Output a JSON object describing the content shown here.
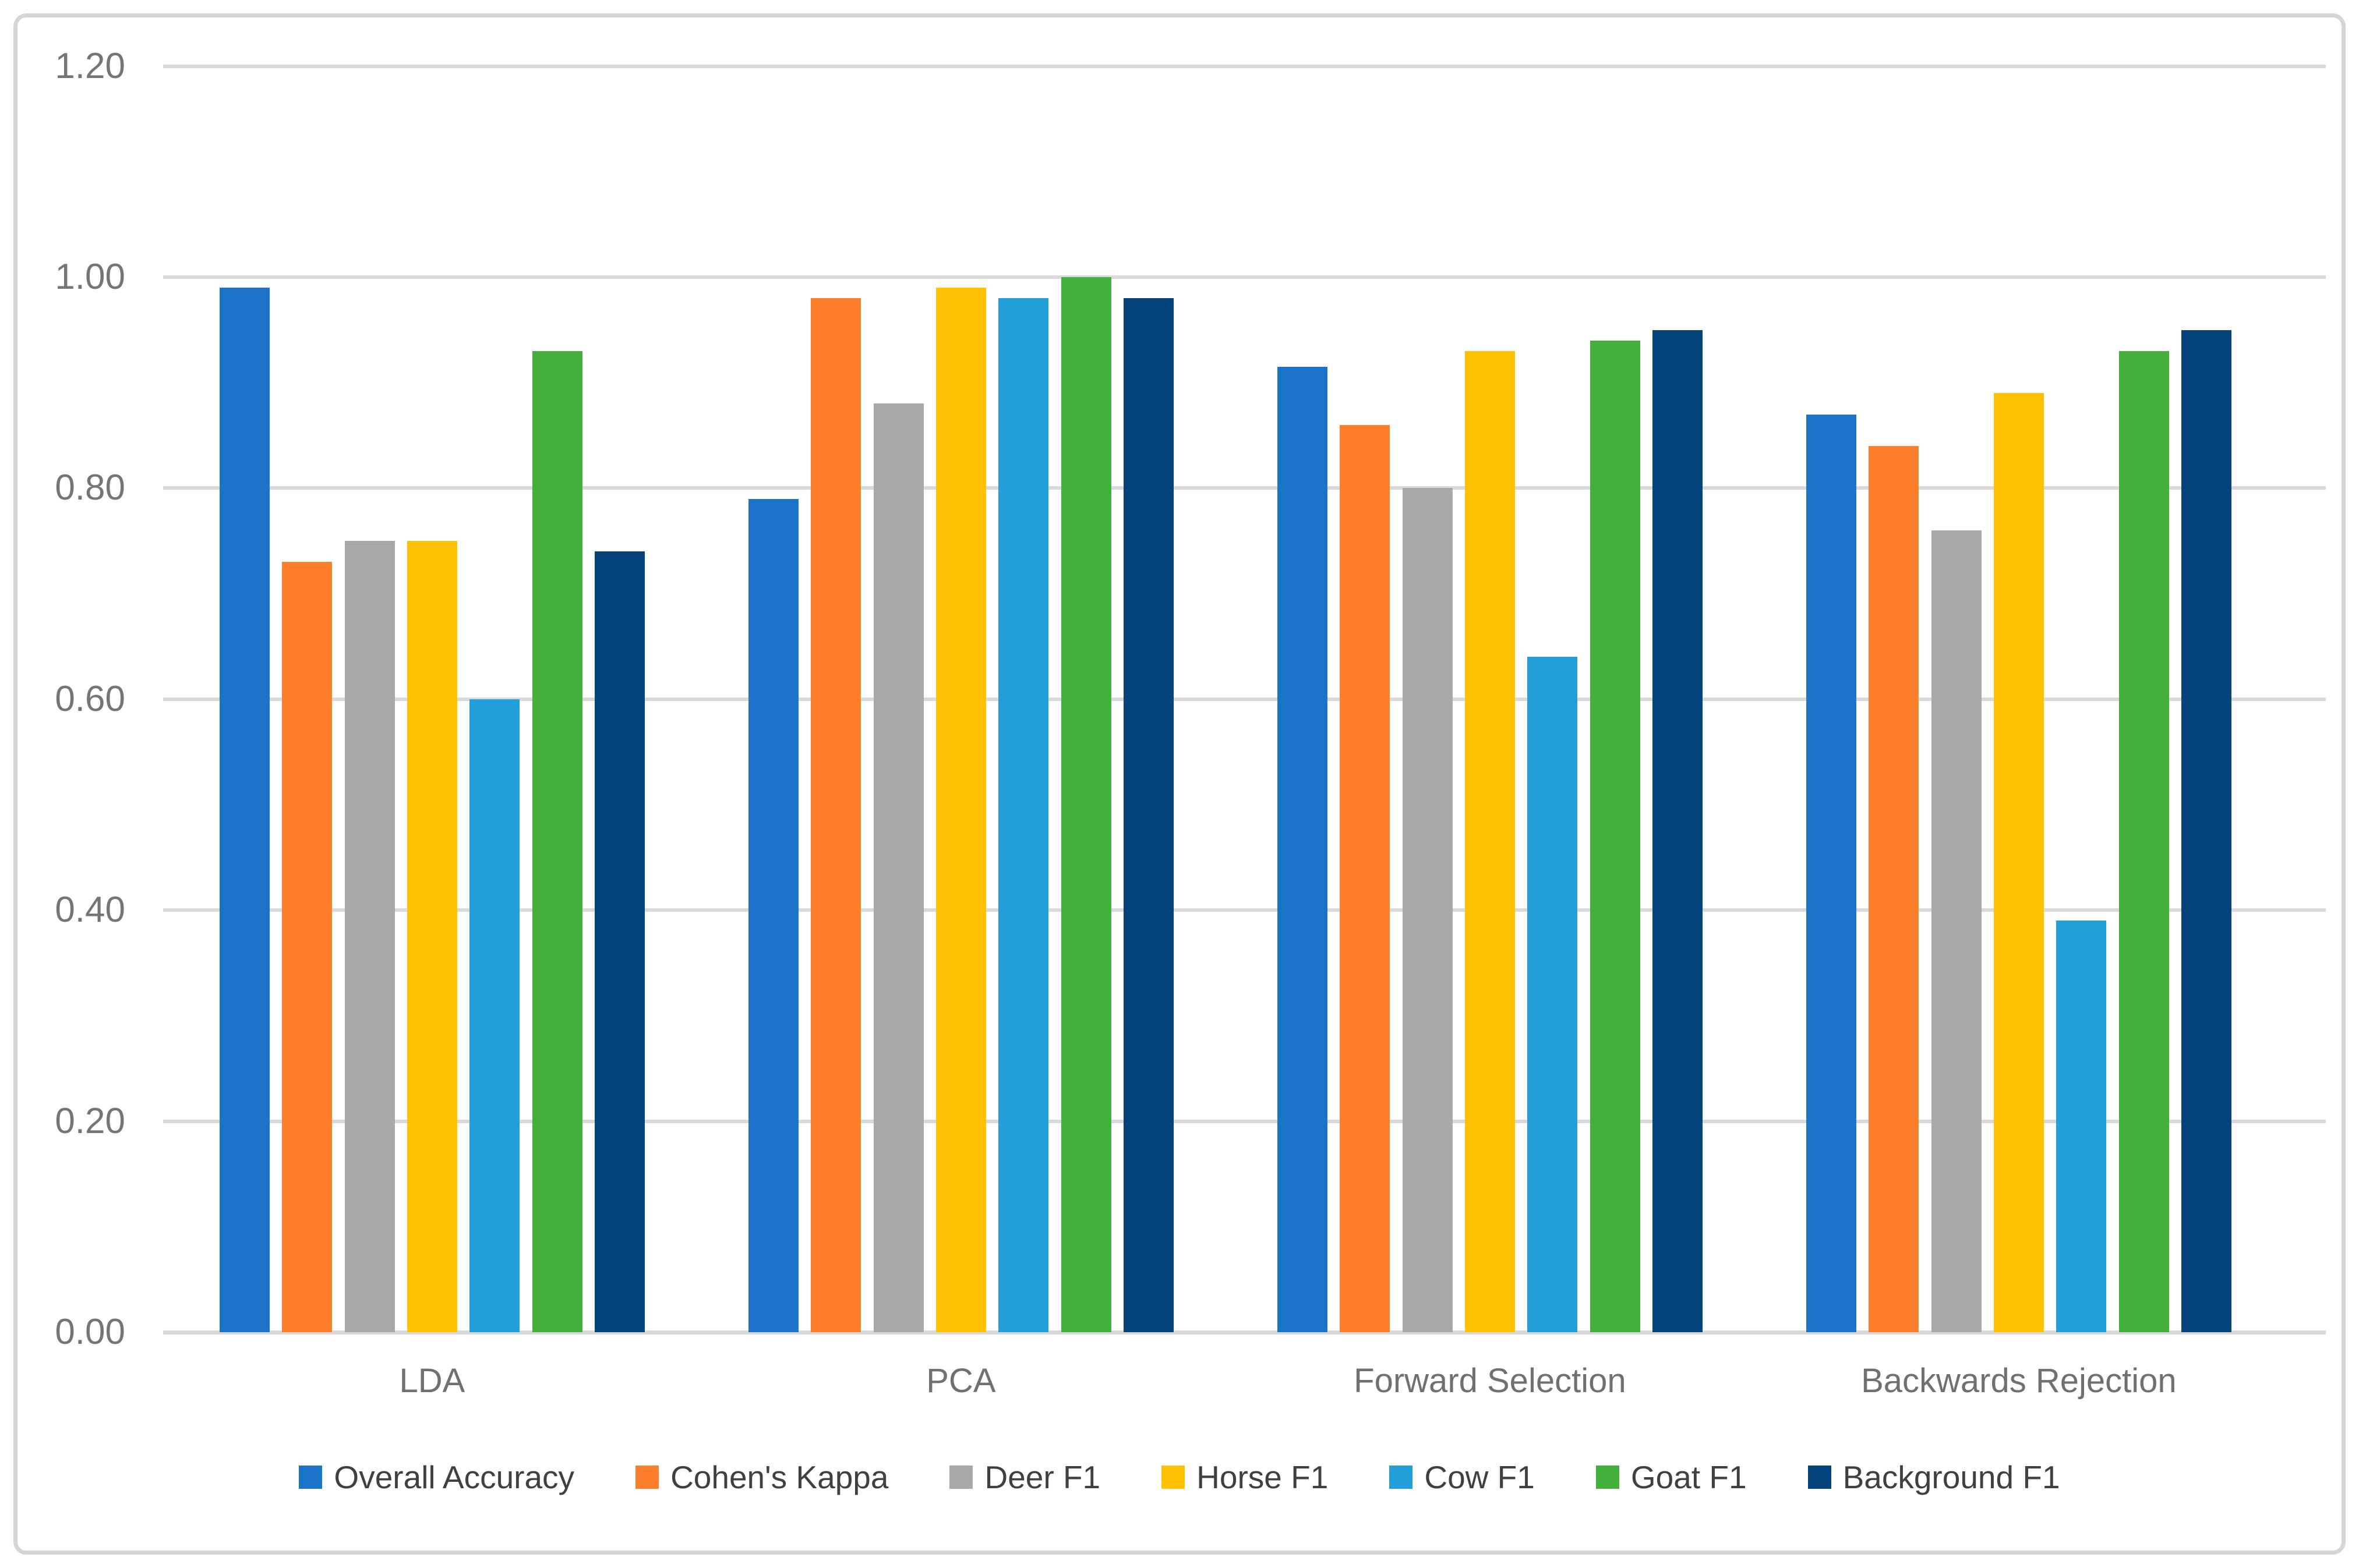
{
  "chart_data": {
    "type": "bar",
    "title": "",
    "xlabel": "",
    "ylabel": "",
    "grid": true,
    "legend_position": "bottom",
    "y_axis": {
      "min": 0.0,
      "max": 1.2,
      "step": 0.2,
      "ticks": [
        {
          "label": "1.20",
          "value": 1.2
        },
        {
          "label": "1.00",
          "value": 1.0
        },
        {
          "label": "0.80",
          "value": 0.8
        },
        {
          "label": "0.60",
          "value": 0.6
        },
        {
          "label": "0.40",
          "value": 0.4
        },
        {
          "label": "0.20",
          "value": 0.2
        },
        {
          "label": "0.00",
          "value": 0.0
        }
      ]
    },
    "categories": [
      "LDA",
      "PCA",
      "Forward Selection",
      "Backwards Rejection"
    ],
    "series": [
      {
        "name": "Overall Accuracy",
        "color": "#1B74C8",
        "values": [
          0.99,
          0.79,
          0.915,
          0.87
        ]
      },
      {
        "name": "Cohen's Kappa",
        "color": "#FD7E2B",
        "values": [
          0.73,
          0.98,
          0.86,
          0.84
        ]
      },
      {
        "name": "Deer F1",
        "color": "#A8A8A8",
        "values": [
          0.75,
          0.88,
          0.8,
          0.76
        ]
      },
      {
        "name": "Horse F1",
        "color": "#FFC102",
        "values": [
          0.75,
          0.99,
          0.93,
          0.89
        ]
      },
      {
        "name": "Cow F1",
        "color": "#229ED9",
        "values": [
          0.6,
          0.98,
          0.64,
          0.39
        ]
      },
      {
        "name": "Goat F1",
        "color": "#45AF3B",
        "values": [
          0.93,
          1.0,
          0.94,
          0.93
        ]
      },
      {
        "name": "Background F1",
        "color": "#05437D",
        "values": [
          0.74,
          0.98,
          0.95,
          0.95
        ]
      }
    ],
    "colors": {
      "gridline": "#D9D9D9",
      "axis_text": "#757575",
      "category_text": "#707070",
      "legend_text": "#404040",
      "frame_border": "#D5D5D5",
      "background": "#FFFFFF"
    }
  }
}
